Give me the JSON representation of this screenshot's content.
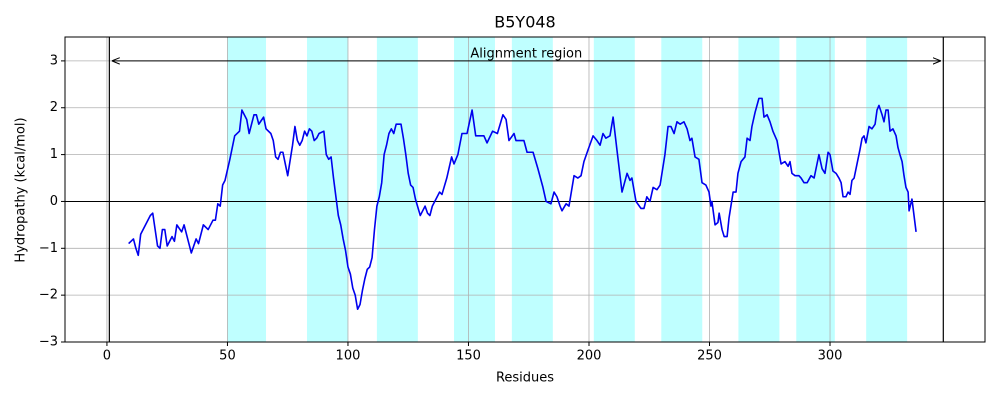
{
  "chart_data": {
    "type": "line",
    "title": "B5Y048",
    "x_label": "Residues",
    "y_label": "Hydropathy (kcal/mol)",
    "xlim": [
      -17.4,
      364.3
    ],
    "ylim": [
      -3,
      3.51
    ],
    "xticks": [
      0,
      50,
      100,
      150,
      200,
      250,
      300
    ],
    "yticks": [
      {
        "value": -3,
        "label": "−3"
      },
      {
        "value": -2,
        "label": "−2"
      },
      {
        "value": -1,
        "label": "−1"
      },
      0,
      1,
      2,
      3
    ],
    "grid": true,
    "spans": [
      [
        50,
        66
      ],
      [
        83,
        100
      ],
      [
        112,
        129
      ],
      [
        144,
        161
      ],
      [
        168,
        185
      ],
      [
        202,
        219
      ],
      [
        230,
        247
      ],
      [
        262,
        279
      ],
      [
        286,
        302
      ],
      [
        315,
        332
      ]
    ],
    "span_color": "#00ffff",
    "vlines": [
      1,
      347
    ],
    "hline": 0,
    "arrow": {
      "x": [
        2,
        346
      ],
      "y": 3
    },
    "annotation": {
      "text": "Alignment region",
      "x": 174,
      "y": 3.15
    },
    "x": [
      9,
      11,
      12,
      13,
      14,
      16,
      18,
      19,
      20,
      21,
      22,
      23,
      24,
      25,
      27,
      28,
      29,
      31,
      32,
      34,
      35,
      37,
      38,
      40,
      42,
      44,
      45,
      46,
      47,
      48,
      49,
      51,
      53,
      55,
      56,
      58,
      59,
      61,
      62,
      63,
      65,
      66,
      68,
      69,
      70,
      71,
      72,
      73,
      74,
      75,
      77,
      78,
      79,
      80,
      81,
      82,
      83,
      84,
      85,
      86,
      87,
      88,
      90,
      91,
      92,
      93,
      94,
      95,
      96,
      97,
      98,
      99,
      100,
      101,
      102,
      103,
      104,
      105,
      106,
      107,
      108,
      109,
      110,
      111,
      112,
      113,
      114,
      115,
      116,
      117,
      118,
      119,
      120,
      122,
      123,
      124,
      125,
      126,
      127,
      128,
      130,
      131,
      132,
      133,
      134,
      135,
      136,
      138,
      139,
      141,
      143,
      144,
      145.6,
      147.3,
      149.4,
      151.5,
      153,
      156.4,
      157.7,
      160,
      162,
      164.3,
      165.6,
      166.8,
      168.9,
      169.7,
      173,
      174.3,
      176.8,
      178.8,
      180.9,
      182.2,
      184.2,
      185.5,
      186.7,
      188,
      188.8,
      190.5,
      191.7,
      193.8,
      195.4,
      196.7,
      197.9,
      199.6,
      201.7,
      203.3,
      204.6,
      205.8,
      207,
      208.7,
      210,
      211.6,
      213.7,
      215.8,
      217,
      217.8,
      219.5,
      221.6,
      222.8,
      224,
      225.3,
      226.6,
      228.2,
      229.5,
      231.5,
      232.8,
      234,
      235.3,
      236.5,
      237.8,
      239.4,
      240.7,
      241.9,
      242.7,
      244,
      245.6,
      246.9,
      248.5,
      249.8,
      250.6,
      251,
      252.3,
      253.5,
      254,
      255.2,
      256.1,
      257.3,
      258.1,
      259.8,
      261,
      261.8,
      263.1,
      264.7,
      265.6,
      266.8,
      267.6,
      268.9,
      270.5,
      271.8,
      272.6,
      273.9,
      275.1,
      276.3,
      278,
      279.7,
      281.3,
      282.6,
      283.4,
      284.2,
      285.5,
      287.1,
      288,
      289.2,
      290.5,
      292.1,
      293.4,
      295.4,
      296.7,
      297.9,
      299.2,
      300,
      301.2,
      302.5,
      303.7,
      304.6,
      305.4,
      306.6,
      307.5,
      308.3,
      309.1,
      310,
      311.2,
      312.4,
      313.3,
      314.1,
      314.9,
      316.2,
      317.4,
      318.7,
      319.5,
      320.3,
      321.6,
      322.4,
      323.2,
      324.1,
      324.9,
      326.1,
      327.4,
      328.2,
      329,
      329.9,
      330.7,
      331.5,
      332.4,
      332.8,
      334,
      335.7
    ],
    "series": [
      {
        "name": "Hydropathy",
        "color": "#0000ee",
        "values": [
          -0.9,
          -0.8,
          -1.0,
          -1.15,
          -0.7,
          -0.5,
          -0.3,
          -0.25,
          -0.6,
          -0.95,
          -1.0,
          -0.6,
          -0.6,
          -0.95,
          -0.75,
          -0.85,
          -0.5,
          -0.65,
          -0.5,
          -0.9,
          -1.1,
          -0.8,
          -0.9,
          -0.5,
          -0.6,
          -0.4,
          -0.4,
          -0.05,
          -0.1,
          0.35,
          0.45,
          0.9,
          1.4,
          1.5,
          1.95,
          1.75,
          1.45,
          1.85,
          1.85,
          1.65,
          1.8,
          1.55,
          1.45,
          1.3,
          0.95,
          0.9,
          1.05,
          1.05,
          0.8,
          0.55,
          1.2,
          1.6,
          1.3,
          1.2,
          1.3,
          1.5,
          1.4,
          1.55,
          1.5,
          1.3,
          1.35,
          1.45,
          1.5,
          1.0,
          0.9,
          0.95,
          0.5,
          0.1,
          -0.3,
          -0.5,
          -0.8,
          -1.05,
          -1.4,
          -1.55,
          -1.85,
          -2.0,
          -2.3,
          -2.2,
          -1.9,
          -1.65,
          -1.45,
          -1.4,
          -1.2,
          -0.6,
          -0.1,
          0.1,
          0.4,
          1.0,
          1.2,
          1.45,
          1.55,
          1.45,
          1.65,
          1.65,
          1.35,
          1.0,
          0.6,
          0.35,
          0.3,
          0.05,
          -0.3,
          -0.2,
          -0.1,
          -0.25,
          -0.3,
          -0.1,
          0.0,
          0.2,
          0.15,
          0.5,
          0.95,
          0.8,
          1.0,
          1.45,
          1.45,
          1.95,
          1.4,
          1.4,
          1.25,
          1.5,
          1.45,
          1.85,
          1.75,
          1.3,
          1.45,
          1.3,
          1.3,
          1.05,
          1.05,
          0.7,
          0.3,
          0.0,
          -0.05,
          0.2,
          0.1,
          -0.1,
          -0.2,
          -0.05,
          -0.1,
          0.55,
          0.5,
          0.55,
          0.85,
          1.1,
          1.4,
          1.3,
          1.2,
          1.45,
          1.35,
          1.4,
          1.8,
          1.1,
          0.2,
          0.6,
          0.45,
          0.5,
          0.0,
          -0.15,
          -0.15,
          0.1,
          0.0,
          0.3,
          0.25,
          0.35,
          1.0,
          1.6,
          1.6,
          1.45,
          1.7,
          1.65,
          1.7,
          1.55,
          1.3,
          1.35,
          0.95,
          0.9,
          0.4,
          0.35,
          0.2,
          -0.1,
          0.0,
          -0.5,
          -0.45,
          -0.25,
          -0.6,
          -0.75,
          -0.75,
          -0.35,
          0.2,
          0.2,
          0.6,
          0.85,
          0.95,
          1.35,
          1.3,
          1.6,
          1.9,
          2.2,
          2.2,
          1.8,
          1.85,
          1.7,
          1.5,
          1.3,
          0.8,
          0.85,
          0.75,
          0.85,
          0.6,
          0.55,
          0.55,
          0.5,
          0.4,
          0.4,
          0.55,
          0.5,
          1.0,
          0.7,
          0.6,
          1.05,
          1.0,
          0.65,
          0.6,
          0.5,
          0.4,
          0.1,
          0.1,
          0.2,
          0.15,
          0.45,
          0.5,
          0.8,
          1.1,
          1.35,
          1.4,
          1.25,
          1.6,
          1.55,
          1.65,
          1.95,
          2.05,
          1.85,
          1.7,
          1.95,
          1.95,
          1.5,
          1.55,
          1.4,
          1.15,
          1.0,
          0.85,
          0.55,
          0.3,
          0.2,
          -0.2,
          0.05,
          -0.65
        ]
      }
    ]
  }
}
